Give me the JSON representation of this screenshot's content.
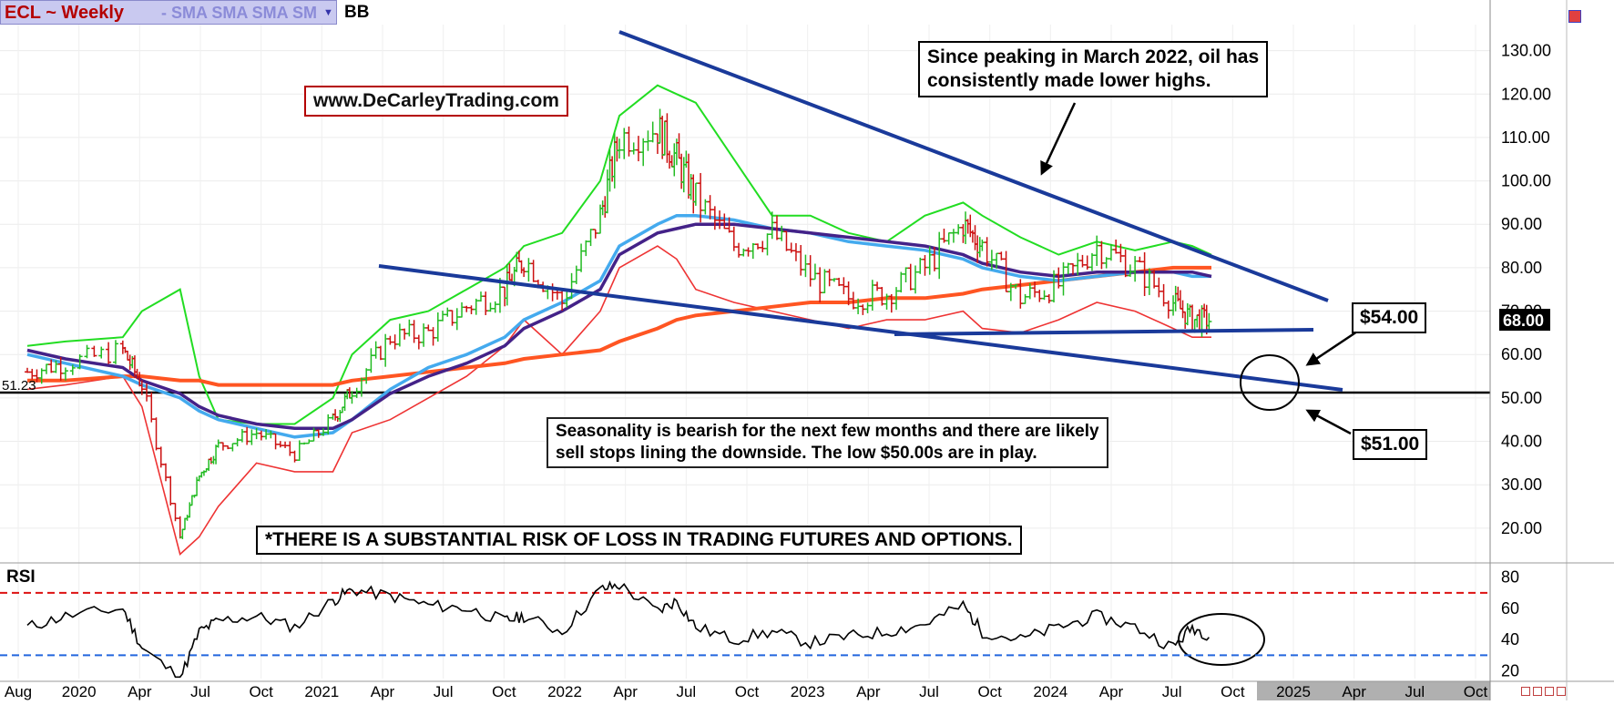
{
  "header": {
    "title": "ECL ~ Weekly",
    "indicators": "- SMA SMA SMA SM",
    "bb_label": "BB"
  },
  "price_axis": {
    "ticks": [
      "130.00",
      "120.00",
      "110.00",
      "100.00",
      "90.00",
      "80.00",
      "70.00",
      "60.00",
      "50.00",
      "40.00",
      "30.00",
      "20.00"
    ],
    "last_price": "68.00",
    "left_marker": "51.23"
  },
  "rsi": {
    "label": "RSI",
    "ticks": [
      "80",
      "60",
      "40",
      "20"
    ]
  },
  "time_axis": {
    "labels": [
      "Aug",
      "2020",
      "Apr",
      "Jul",
      "Oct",
      "2021",
      "Apr",
      "Jul",
      "Oct",
      "2022",
      "Apr",
      "Jul",
      "Oct",
      "2023",
      "Apr",
      "Jul",
      "Oct",
      "2024",
      "Apr",
      "Jul",
      "Oct",
      "2025",
      "Apr",
      "Jul",
      "Oct"
    ]
  },
  "annotations": {
    "url": "www.DeCarleyTrading.com",
    "peak_note_line1": "Since peaking in March 2022, oil has",
    "peak_note_line2": "consistently made lower highs.",
    "season_line1": "Seasonality is bearish for the next few months and there are likely",
    "season_line2": "sell stops lining the downside. The low $50.00s are in play.",
    "risk": "*THERE IS A SUBSTANTIAL RISK OF LOSS IN TRADING FUTURES AND OPTIONS.",
    "target_54": "$54.00",
    "target_51": "$51.00"
  },
  "colors": {
    "up_bar": "#22bb22",
    "down_bar": "#cc1111",
    "bb_upper": "#22dd22",
    "bb_lower": "#ee3333",
    "sma_light_blue": "#44aaee",
    "sma_purple": "#442288",
    "sma_orange": "#ff5522",
    "trendline": "#1a3a9a",
    "rsi_line": "#000000",
    "rsi_upper_level": "#dd1111",
    "rsi_lower_level": "#2266dd"
  },
  "chart_data": [
    {
      "type": "line",
      "title": "ECL ~ Weekly",
      "x": [
        "2019-08",
        "2019-10",
        "2020-01",
        "2020-02",
        "2020-04",
        "2020-05",
        "2020-06",
        "2020-08",
        "2020-10",
        "2020-12",
        "2021-01",
        "2021-03",
        "2021-05",
        "2021-07",
        "2021-09",
        "2021-10",
        "2021-12",
        "2022-02",
        "2022-03",
        "2022-05",
        "2022-06",
        "2022-07",
        "2022-09",
        "2022-11",
        "2023-01",
        "2023-03",
        "2023-05",
        "2023-07",
        "2023-09",
        "2023-10",
        "2023-12",
        "2024-02",
        "2024-04",
        "2024-06",
        "2024-08",
        "2024-09",
        "2024-10"
      ],
      "series": [
        {
          "name": "Close",
          "values": [
            56,
            58,
            61,
            53,
            18,
            32,
            39,
            42,
            37,
            45,
            52,
            64,
            65,
            71,
            75,
            82,
            72,
            92,
            110,
            112,
            105,
            96,
            85,
            88,
            78,
            73,
            74,
            80,
            90,
            85,
            73,
            76,
            85,
            80,
            72,
            68,
            68
          ]
        },
        {
          "name": "BB upper",
          "values": [
            62,
            63,
            64,
            70,
            75,
            55,
            45,
            44,
            44,
            50,
            60,
            68,
            70,
            75,
            80,
            85,
            88,
            100,
            115,
            122,
            120,
            118,
            105,
            92,
            92,
            88,
            86,
            92,
            95,
            92,
            87,
            83,
            86,
            84,
            86,
            85,
            83
          ]
        },
        {
          "name": "BB lower",
          "values": [
            52,
            53,
            55,
            48,
            14,
            18,
            25,
            35,
            33,
            33,
            42,
            45,
            50,
            55,
            62,
            68,
            60,
            70,
            80,
            85,
            82,
            75,
            72,
            70,
            68,
            66,
            68,
            68,
            70,
            66,
            65,
            68,
            72,
            70,
            66,
            64,
            64
          ]
        },
        {
          "name": "SMA light blue",
          "values": [
            60,
            58,
            55,
            53,
            50,
            47,
            45,
            43,
            41,
            42,
            45,
            52,
            57,
            60,
            64,
            68,
            72,
            77,
            85,
            90,
            92,
            92,
            91,
            89,
            88,
            86,
            85,
            84,
            82,
            80,
            78,
            77,
            78,
            79,
            79,
            78,
            78
          ]
        },
        {
          "name": "SMA purple",
          "values": [
            61,
            59,
            57,
            54,
            51,
            48,
            46,
            44,
            43,
            43,
            45,
            51,
            55,
            58,
            62,
            66,
            70,
            75,
            83,
            88,
            89,
            90,
            90,
            89,
            88,
            87,
            86,
            85,
            83,
            81,
            79,
            78,
            79,
            79,
            79,
            79,
            78
          ]
        },
        {
          "name": "SMA orange",
          "values": [
            54,
            54,
            55,
            55,
            54,
            54,
            53,
            53,
            53,
            53,
            54,
            55,
            56,
            57,
            58,
            59,
            60,
            61,
            63,
            66,
            68,
            69,
            70,
            71,
            72,
            72,
            73,
            73,
            74,
            75,
            76,
            77,
            78,
            79,
            80,
            80,
            80
          ]
        }
      ],
      "y_axis_ticks": [
        130,
        120,
        110,
        100,
        90,
        80,
        70,
        60,
        50,
        40,
        30,
        20
      ],
      "ylim": [
        12,
        136
      ],
      "last_value": 68,
      "horizontal_line": 51.23
    },
    {
      "type": "line",
      "title": "RSI",
      "x": [
        "2019-08",
        "2019-10",
        "2020-01",
        "2020-02",
        "2020-04",
        "2020-05",
        "2020-06",
        "2020-08",
        "2020-10",
        "2020-12",
        "2021-01",
        "2021-03",
        "2021-05",
        "2021-07",
        "2021-09",
        "2021-10",
        "2021-12",
        "2022-02",
        "2022-03",
        "2022-05",
        "2022-06",
        "2022-07",
        "2022-09",
        "2022-11",
        "2023-01",
        "2023-03",
        "2023-05",
        "2023-07",
        "2023-09",
        "2023-10",
        "2023-12",
        "2024-02",
        "2024-04",
        "2024-06",
        "2024-08",
        "2024-09",
        "2024-10"
      ],
      "values": [
        48,
        55,
        60,
        35,
        15,
        45,
        52,
        55,
        48,
        65,
        72,
        68,
        62,
        60,
        52,
        55,
        45,
        72,
        75,
        58,
        65,
        48,
        40,
        45,
        38,
        42,
        45,
        50,
        62,
        45,
        40,
        48,
        55,
        48,
        35,
        48,
        42
      ],
      "y_axis_ticks": [
        80,
        60,
        40,
        20
      ],
      "ylim": [
        15,
        88
      ],
      "levels": [
        70,
        30
      ]
    }
  ]
}
